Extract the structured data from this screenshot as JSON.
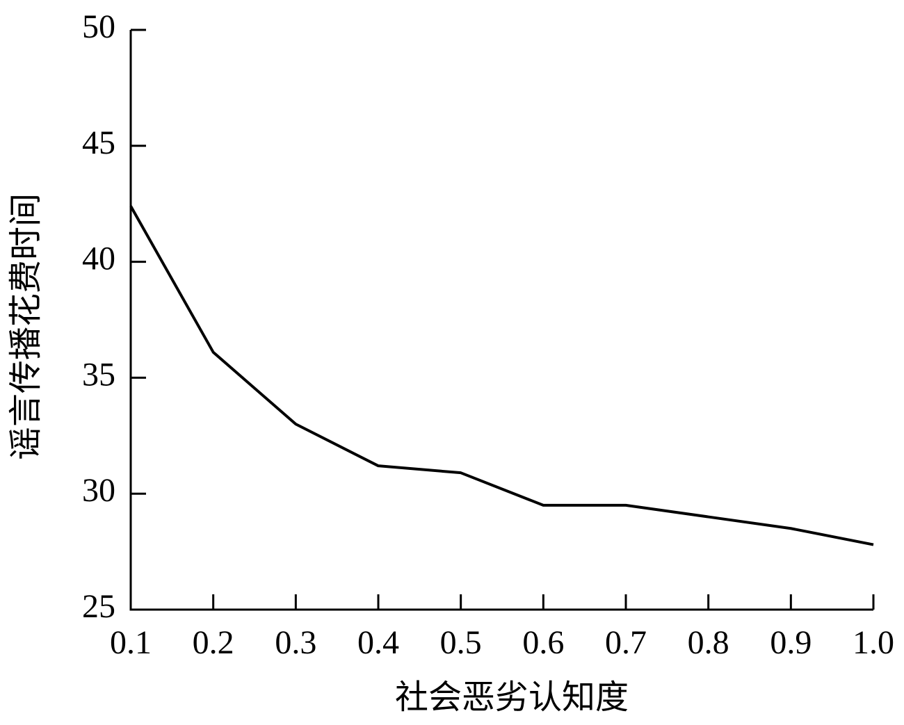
{
  "chart_data": {
    "type": "line",
    "x_label": "社会恶劣认知度",
    "y_label": "谣言传播花费时间",
    "x": [
      0.1,
      0.2,
      0.3,
      0.4,
      0.5,
      0.6,
      0.7,
      0.8,
      0.9,
      1.0
    ],
    "series": [
      {
        "color": "#000000",
        "values": [
          42.4,
          36.1,
          33.0,
          31.2,
          30.9,
          29.5,
          29.5,
          29.0,
          28.5,
          27.8
        ]
      }
    ],
    "xlim": [
      0.1,
      1.0
    ],
    "xticks": [
      0.1,
      0.2,
      0.3,
      0.4,
      0.5,
      0.6,
      0.7,
      0.8,
      0.9,
      {
        "value": 1.0,
        "label": "1.0"
      }
    ],
    "ylim": [
      25,
      50
    ],
    "yticks": [
      25,
      30,
      35,
      40,
      45,
      50
    ],
    "grid": false
  }
}
